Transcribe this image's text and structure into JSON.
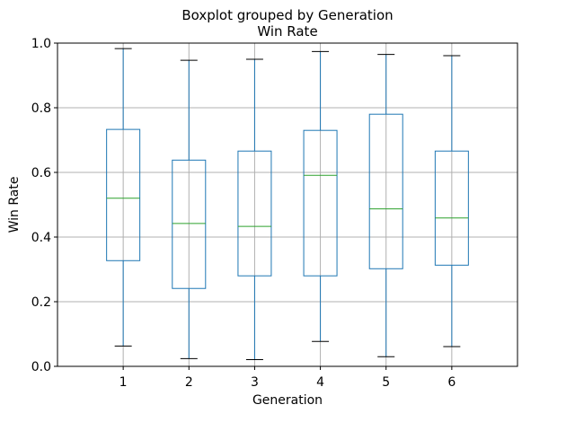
{
  "chart_data": {
    "type": "boxplot",
    "title": "Boxplot grouped by Generation",
    "subtitle": "Win Rate",
    "xlabel": "Generation",
    "ylabel": "Win Rate",
    "ylim": [
      0.0,
      1.0
    ],
    "yticks": [
      "0.0",
      "0.2",
      "0.4",
      "0.6",
      "0.8",
      "1.0"
    ],
    "grid": true,
    "categories": [
      "1",
      "2",
      "3",
      "4",
      "5",
      "6"
    ],
    "boxes": [
      {
        "whislo": 0.063,
        "q1": 0.327,
        "med": 0.52,
        "q3": 0.733,
        "whishi": 0.983
      },
      {
        "whislo": 0.024,
        "q1": 0.241,
        "med": 0.442,
        "q3": 0.638,
        "whishi": 0.947
      },
      {
        "whislo": 0.021,
        "q1": 0.28,
        "med": 0.433,
        "q3": 0.666,
        "whishi": 0.95
      },
      {
        "whislo": 0.077,
        "q1": 0.28,
        "med": 0.591,
        "q3": 0.73,
        "whishi": 0.974
      },
      {
        "whislo": 0.03,
        "q1": 0.302,
        "med": 0.487,
        "q3": 0.78,
        "whishi": 0.965
      },
      {
        "whislo": 0.061,
        "q1": 0.313,
        "med": 0.459,
        "q3": 0.666,
        "whishi": 0.961
      }
    ],
    "colors": {
      "box": "#1f77b4",
      "median": "#2ca02c",
      "caps": "#000000",
      "grid": "#b0b0b0"
    }
  }
}
